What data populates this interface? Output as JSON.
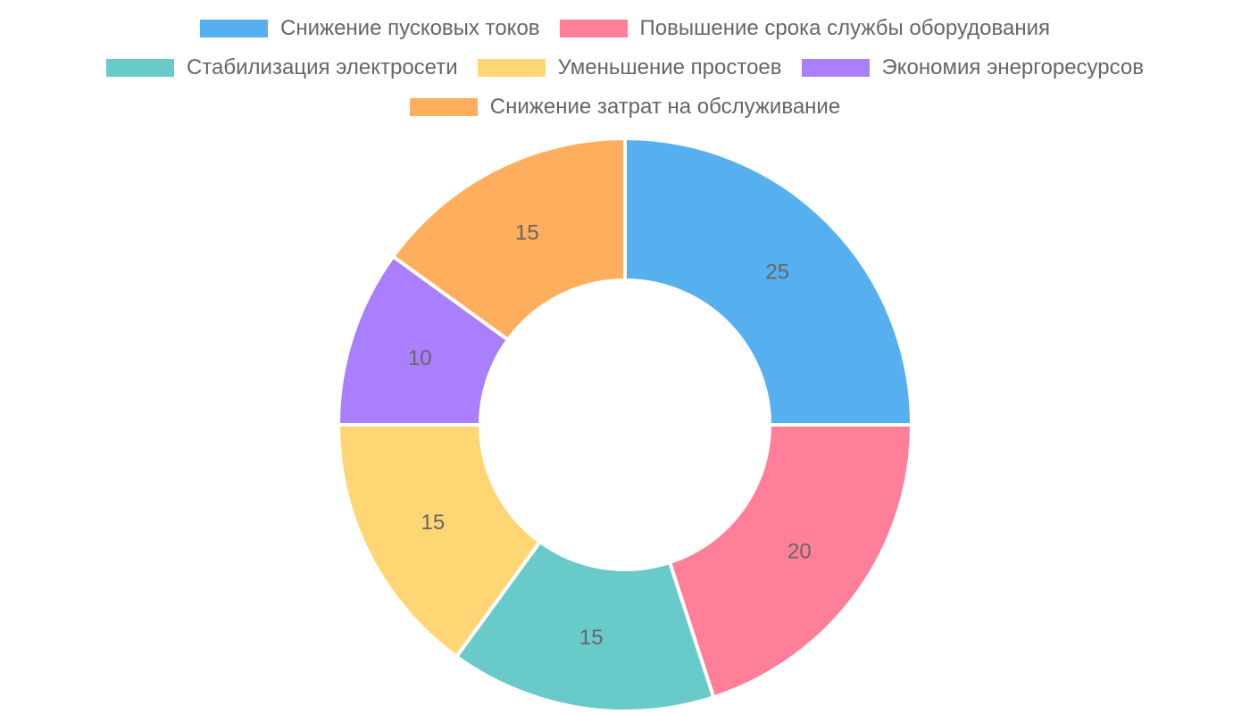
{
  "chart_data": {
    "type": "pie",
    "variant": "doughnut",
    "categories": [
      "Снижение пусковых токов",
      "Повышение срока службы оборудования",
      "Стабилизация электросети",
      "Уменьшение простоев",
      "Экономия энергоресурсов",
      "Снижение затрат на обслуживание"
    ],
    "values": [
      25,
      20,
      15,
      15,
      10,
      15
    ],
    "colors": [
      "#56b0ef",
      "#ff7f98",
      "#68cac9",
      "#ffd673",
      "#a97ffd",
      "#ffae5d"
    ],
    "legend_position": "top",
    "title": ""
  }
}
